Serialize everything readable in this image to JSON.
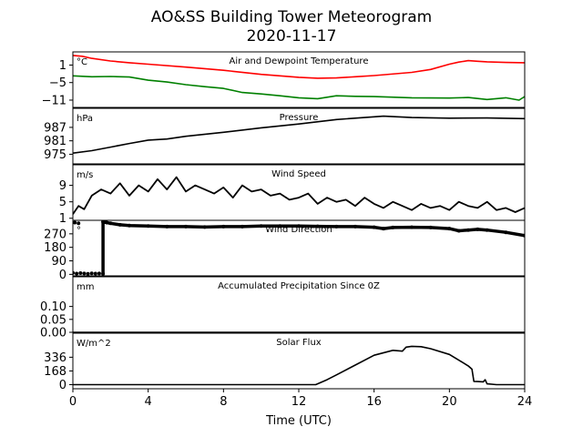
{
  "figure": {
    "title": "AO&SS Building Tower Meteorogram",
    "date": "2020-11-17",
    "xlabel": "Time (UTC)",
    "xticks": [
      "0",
      "4",
      "8",
      "12",
      "16",
      "20",
      "24"
    ],
    "xlim": [
      0,
      24
    ]
  },
  "chart_data": [
    {
      "type": "line",
      "title": "Air and Dewpoint Temperature",
      "unit": "°C",
      "ylim": [
        -13.5,
        5.5
      ],
      "yticks": [
        1,
        -5,
        -11
      ],
      "ytick_labels": [
        "1",
        "−5",
        "−11"
      ],
      "series": [
        {
          "color": "#ff0000",
          "x": [
            0,
            0.5,
            1,
            2,
            3,
            4,
            6,
            8,
            10,
            12,
            13,
            14,
            15,
            16,
            18,
            19,
            20,
            20.5,
            21,
            21.5,
            22,
            23,
            24
          ],
          "y": [
            4.3,
            4.0,
            3.3,
            2.4,
            1.8,
            1.3,
            0.3,
            -0.8,
            -2.2,
            -3.2,
            -3.5,
            -3.4,
            -3.0,
            -2.6,
            -1.5,
            -0.5,
            1.3,
            2.0,
            2.5,
            2.3,
            2.1,
            1.9,
            1.8
          ]
        },
        {
          "color": "#008000",
          "x": [
            0,
            1,
            2,
            3,
            4,
            5,
            6,
            7,
            8,
            9,
            10,
            11,
            12,
            13,
            14,
            15,
            16,
            18,
            20,
            21,
            22,
            23,
            23.7,
            24
          ],
          "y": [
            -2.7,
            -3.0,
            -2.9,
            -3.1,
            -4.2,
            -4.8,
            -5.7,
            -6.4,
            -7.0,
            -8.4,
            -8.9,
            -9.5,
            -10.2,
            -10.5,
            -9.5,
            -9.7,
            -9.8,
            -10.2,
            -10.3,
            -10.1,
            -10.8,
            -10.2,
            -11.0,
            -9.8
          ]
        }
      ]
    },
    {
      "type": "line",
      "title": "Pressure",
      "unit": "hPa",
      "ylim": [
        970.7,
        995.5
      ],
      "yticks": [
        987,
        981,
        975
      ],
      "ytick_labels": [
        "987",
        "981",
        "975"
      ],
      "series": [
        {
          "color": "#000000",
          "x": [
            0,
            1,
            2,
            3,
            4,
            5,
            6,
            8,
            10,
            12,
            14,
            16,
            16.5,
            17,
            18,
            20,
            22,
            24
          ],
          "y": [
            975.5,
            976.6,
            978.2,
            979.8,
            981.3,
            981.8,
            983.0,
            984.8,
            986.8,
            988.5,
            990.5,
            991.7,
            992.0,
            991.8,
            991.4,
            991.1,
            991.2,
            990.9
          ]
        }
      ]
    },
    {
      "type": "line",
      "title": "Wind Speed",
      "unit": "m/s",
      "ylim": [
        0.5,
        14.0
      ],
      "yticks": [
        9,
        5,
        1
      ],
      "ytick_labels": [
        "9",
        "5",
        "1"
      ],
      "series": [
        {
          "color": "#000000",
          "x": [
            0,
            0.3,
            0.6,
            1,
            1.5,
            2,
            2.5,
            3,
            3.5,
            4,
            4.5,
            5,
            5.5,
            6,
            6.5,
            7,
            7.5,
            8,
            8.5,
            9,
            9.5,
            10,
            10.5,
            11,
            11.5,
            12,
            12.5,
            13,
            13.5,
            14,
            14.5,
            15,
            15.5,
            16,
            16.5,
            17,
            17.5,
            18,
            18.5,
            19,
            19.5,
            20,
            20.5,
            21,
            21.5,
            22,
            22.5,
            23,
            23.5,
            24
          ],
          "y": [
            2.0,
            4.0,
            3.2,
            6.5,
            8.0,
            7.0,
            9.5,
            6.5,
            9.0,
            7.5,
            10.5,
            8.0,
            11.0,
            7.5,
            9.0,
            8.0,
            7.0,
            8.5,
            6.0,
            9.0,
            7.5,
            8.0,
            6.5,
            7.0,
            5.5,
            6.0,
            7.0,
            4.5,
            6.0,
            5.0,
            5.5,
            4.0,
            6.0,
            4.5,
            3.5,
            5.0,
            4.0,
            3.0,
            4.5,
            3.5,
            4.0,
            3.0,
            5.0,
            4.0,
            3.5,
            5.0,
            3.0,
            3.5,
            2.5,
            3.5
          ]
        }
      ]
    },
    {
      "type": "scatter",
      "title": "Wind Direction",
      "unit": "°",
      "ylim": [
        -10,
        360
      ],
      "yticks": [
        270,
        180,
        90,
        0
      ],
      "ytick_labels": [
        "270",
        "180",
        "90",
        "0"
      ],
      "series": [
        {
          "color": "#000000",
          "x": [
            0.0,
            0.2,
            0.4,
            0.6,
            0.8,
            1.0,
            1.2,
            1.4,
            1.6,
            0.1,
            0.3,
            1.6,
            1.8,
            2.0,
            2.5,
            3,
            4,
            5,
            6,
            7,
            8,
            9,
            10,
            11,
            12,
            13,
            14,
            15,
            16,
            16.5,
            17,
            18,
            19,
            20,
            20.5,
            21,
            21.5,
            22,
            23,
            24
          ],
          "y": [
            10,
            5,
            8,
            6,
            4,
            7,
            5,
            6,
            4,
            345,
            340,
            350,
            345,
            340,
            330,
            325,
            322,
            318,
            318,
            315,
            318,
            318,
            322,
            322,
            322,
            320,
            318,
            318,
            314,
            305,
            312,
            314,
            312,
            305,
            290,
            295,
            300,
            295,
            280,
            258
          ]
        }
      ]
    },
    {
      "type": "line",
      "title": "Accumulated Precipitation Since 0Z",
      "unit": "mm",
      "ylim": [
        0,
        0.215
      ],
      "yticks": [
        0.1,
        0.05,
        0.0
      ],
      "ytick_labels": [
        "0.10",
        "0.05",
        "0.00"
      ],
      "series": [
        {
          "color": "#000000",
          "x": [
            0,
            24
          ],
          "y": [
            0,
            0
          ]
        }
      ]
    },
    {
      "type": "line",
      "title": "Solar Flux",
      "unit": "W/m^2",
      "ylim": [
        -50,
        630
      ],
      "yticks": [
        336,
        168,
        0
      ],
      "ytick_labels": [
        "336",
        "168",
        "0"
      ],
      "series": [
        {
          "color": "#000000",
          "x": [
            0,
            12.9,
            13.5,
            14,
            15,
            16,
            17,
            17.5,
            17.7,
            18,
            18.5,
            19,
            20,
            21,
            21.2,
            21.3,
            21.5,
            21.8,
            21.9,
            22.0,
            22.5,
            23,
            24
          ],
          "y": [
            0,
            0,
            60,
            120,
            240,
            360,
            420,
            410,
            460,
            470,
            465,
            440,
            370,
            230,
            190,
            40,
            38,
            35,
            60,
            10,
            0,
            0,
            0
          ]
        }
      ]
    }
  ]
}
